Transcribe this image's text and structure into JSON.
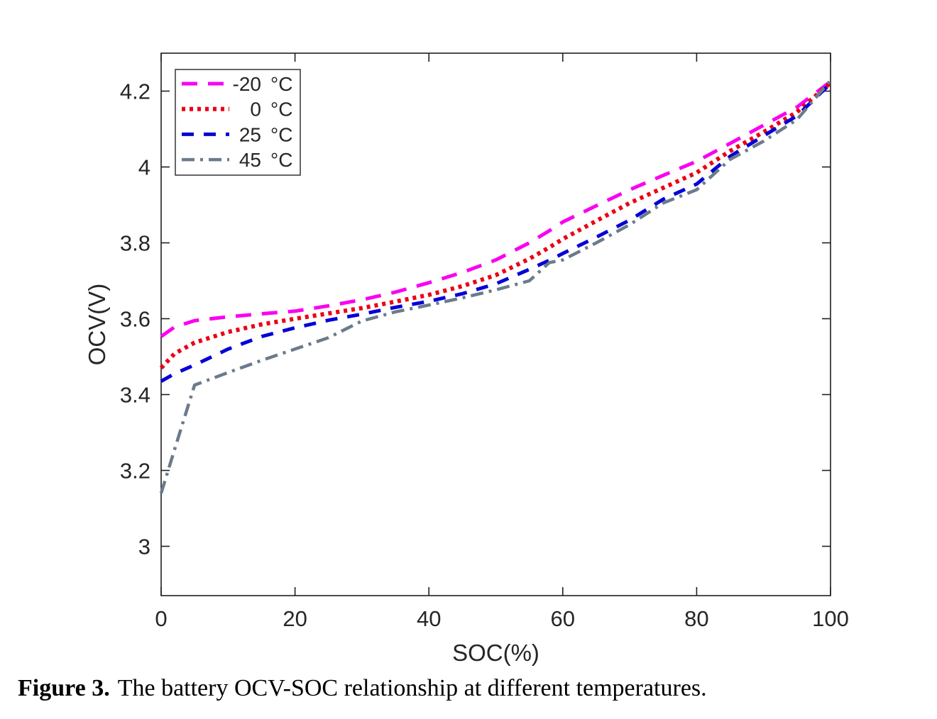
{
  "figure": {
    "caption_label": "Figure 3.",
    "caption_text": "The battery OCV-SOC relationship at different temperatures."
  },
  "chart_data": {
    "type": "line",
    "title": "",
    "xlabel": "SOC(%)",
    "ylabel": "OCV(V)",
    "xlim": [
      0,
      100
    ],
    "ylim": [
      2.87,
      4.3
    ],
    "xticks": [
      0,
      20,
      40,
      60,
      80,
      100
    ],
    "xtick_labels": [
      "0",
      "20",
      "40",
      "60",
      "80",
      "100"
    ],
    "yticks": [
      3,
      3.2,
      3.4,
      3.6,
      3.8,
      4,
      4.2
    ],
    "ytick_labels": [
      "3",
      "3.2",
      "3.4",
      "3.6",
      "3.8",
      "4",
      "4.2"
    ],
    "grid": false,
    "legend_position": "top-left-inside",
    "frame_color": "#202020",
    "text_color": "#262626",
    "legend_border_color": "#333333",
    "x": [
      0,
      2,
      5,
      10,
      15,
      20,
      25,
      30,
      35,
      40,
      45,
      50,
      55,
      58,
      60,
      65,
      70,
      75,
      80,
      85,
      90,
      95,
      100
    ],
    "series": [
      {
        "name": "-20 °C",
        "legend_number": "-20",
        "legend_unit": "°C",
        "color": "#FA00F0",
        "dash": "22 15",
        "width": 5,
        "values": [
          3.553,
          3.578,
          3.595,
          3.605,
          3.613,
          3.62,
          3.634,
          3.65,
          3.67,
          3.695,
          3.722,
          3.755,
          3.8,
          3.832,
          3.855,
          3.898,
          3.94,
          3.978,
          4.015,
          4.062,
          4.11,
          4.158,
          4.225
        ]
      },
      {
        "name": "0 °C",
        "legend_number": "0",
        "legend_unit": "°C",
        "color": "#EB0014",
        "dash": "5 6",
        "width": 6,
        "values": [
          3.47,
          3.508,
          3.537,
          3.565,
          3.585,
          3.6,
          3.614,
          3.628,
          3.645,
          3.663,
          3.686,
          3.715,
          3.758,
          3.788,
          3.81,
          3.858,
          3.905,
          3.945,
          3.985,
          4.042,
          4.092,
          4.145,
          4.222
        ]
      },
      {
        "name": "25 °C",
        "legend_number": "25",
        "legend_unit": "°C",
        "color": "#0600D6",
        "dash": "17 14",
        "width": 5,
        "values": [
          3.435,
          3.455,
          3.478,
          3.52,
          3.553,
          3.576,
          3.596,
          3.612,
          3.63,
          3.646,
          3.666,
          3.692,
          3.73,
          3.754,
          3.772,
          3.815,
          3.86,
          3.915,
          3.955,
          4.028,
          4.082,
          4.135,
          4.22
        ]
      },
      {
        "name": "45 °C",
        "legend_number": "45",
        "legend_unit": "°C",
        "color": "#6B7B8C",
        "dash": "18 8 4 8",
        "width": 4.5,
        "values": [
          3.14,
          3.255,
          3.425,
          3.458,
          3.49,
          3.52,
          3.55,
          3.594,
          3.618,
          3.636,
          3.655,
          3.676,
          3.7,
          3.748,
          3.755,
          3.8,
          3.848,
          3.905,
          3.94,
          4.02,
          4.068,
          4.125,
          4.228
        ]
      }
    ]
  }
}
